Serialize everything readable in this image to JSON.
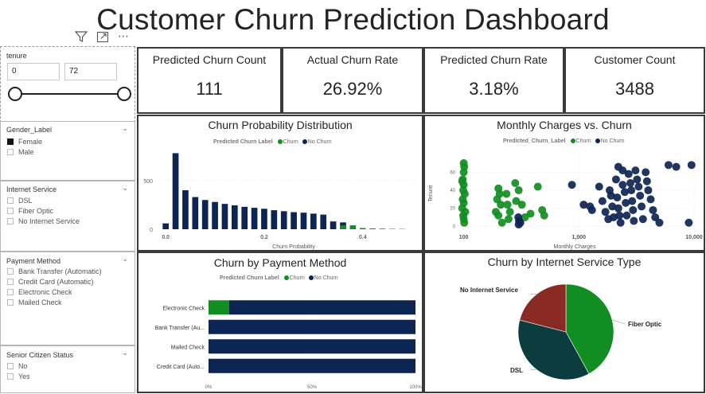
{
  "title": "Customer Churn Prediction Dashboard",
  "colors": {
    "churn": "#118d21",
    "no_churn": "#0d2553",
    "dsl": "#0b3c3e",
    "no_internet": "#8a2a25"
  },
  "toolbar": {
    "filter_icon": "filter-icon",
    "focus_icon": "focus-mode-icon",
    "more_icon": "more-options-icon",
    "more_label": "⋯"
  },
  "tenure": {
    "title": "tenure",
    "min": "0",
    "max": "72",
    "range": [
      0,
      72
    ]
  },
  "kpis": [
    {
      "label": "Predicted Churn Count",
      "value": "111"
    },
    {
      "label": "Actual Churn Rate",
      "value": "26.92%"
    },
    {
      "label": "Predicted Churn Rate",
      "value": "3.18%"
    },
    {
      "label": "Customer Count",
      "value": "3488"
    }
  ],
  "slicers": {
    "gender": {
      "title": "Gender_Label",
      "options": [
        {
          "label": "Female",
          "checked": true
        },
        {
          "label": "Male",
          "checked": false
        }
      ]
    },
    "internet": {
      "title": "Internet Service",
      "options": [
        {
          "label": "DSL",
          "checked": false
        },
        {
          "label": "Fiber Optic",
          "checked": false
        },
        {
          "label": "No Internet Service",
          "checked": false
        }
      ]
    },
    "payment": {
      "title": "Payment Method",
      "options": [
        {
          "label": "Bank Transfer (Automatic)",
          "checked": false
        },
        {
          "label": "Credit Card (Automatic)",
          "checked": false
        },
        {
          "label": "Electronic Check",
          "checked": false
        },
        {
          "label": "Mailed Check",
          "checked": false
        }
      ]
    },
    "senior": {
      "title": "Senior Citizen Status",
      "options": [
        {
          "label": "No",
          "checked": false
        },
        {
          "label": "Yes",
          "checked": false
        }
      ]
    }
  },
  "chart_data": [
    {
      "type": "bar",
      "title": "Churn Probability Distribution",
      "legend_title": "Predicted Churn Label",
      "xlabel": "Churn Probability",
      "ylabel": "",
      "xlim": [
        -0.01,
        0.52
      ],
      "ylim": [
        0,
        800
      ],
      "xticks": [
        "0.0",
        "0.2",
        "0.4"
      ],
      "yticks": [
        "0",
        "500"
      ],
      "legend": [
        "Churn",
        "No Churn"
      ],
      "bin_width": 0.02,
      "series": [
        {
          "name": "No Churn",
          "x": [
            0.0,
            0.02,
            0.04,
            0.06,
            0.08,
            0.1,
            0.12,
            0.14,
            0.16,
            0.18,
            0.2,
            0.22,
            0.24,
            0.26,
            0.28,
            0.3,
            0.32,
            0.34,
            0.36
          ],
          "values": [
            60,
            780,
            400,
            330,
            300,
            280,
            260,
            245,
            230,
            220,
            210,
            195,
            185,
            175,
            170,
            160,
            150,
            80,
            70
          ]
        },
        {
          "name": "Churn",
          "x": [
            0.36,
            0.38,
            0.4,
            0.42,
            0.44,
            0.46,
            0.48
          ],
          "values": [
            40,
            40,
            12,
            8,
            6,
            4,
            3
          ]
        }
      ]
    },
    {
      "type": "scatter",
      "title": "Monthly Charges vs. Churn",
      "legend_title": "Predicted_Churn_Label",
      "xlabel": "Monthly Charges",
      "ylabel": "Tenure",
      "xscale": "log",
      "xlim": [
        90,
        10000
      ],
      "ylim": [
        -5,
        78
      ],
      "xticks": [
        "100",
        "1,000",
        "10,000"
      ],
      "yticks": [
        "0",
        "20",
        "40",
        "60"
      ],
      "legend": [
        "Churn",
        "No Churn"
      ],
      "series": [
        {
          "name": "Churn",
          "points": [
            [
              100,
              70
            ],
            [
              101,
              66
            ],
            [
              100,
              60
            ],
            [
              98,
              52
            ],
            [
              97,
              50
            ],
            [
              100,
              46
            ],
            [
              99,
              40
            ],
            [
              102,
              36
            ],
            [
              98,
              30
            ],
            [
              100,
              26
            ],
            [
              97,
              20
            ],
            [
              103,
              16
            ],
            [
              99,
              12
            ],
            [
              100,
              8
            ],
            [
              101,
              4
            ],
            [
              200,
              42
            ],
            [
              205,
              36
            ],
            [
              195,
              30
            ],
            [
              210,
              24
            ],
            [
              190,
              16
            ],
            [
              200,
              12
            ],
            [
              215,
              4
            ],
            [
              235,
              36
            ],
            [
              240,
              24
            ],
            [
              252,
              16
            ],
            [
              245,
              8
            ],
            [
              280,
              48
            ],
            [
              300,
              40
            ],
            [
              320,
              24
            ],
            [
              340,
              10
            ],
            [
              380,
              14
            ],
            [
              440,
              44
            ],
            [
              480,
              18
            ],
            [
              500,
              12
            ],
            [
              285,
              28
            ]
          ]
        },
        {
          "name": "No Churn",
          "points": [
            [
              300,
              2
            ],
            [
              302,
              6
            ],
            [
              298,
              10
            ],
            [
              310,
              4
            ],
            [
              870,
              46
            ],
            [
              1100,
              24
            ],
            [
              1300,
              18
            ],
            [
              1500,
              44
            ],
            [
              1600,
              28
            ],
            [
              1700,
              16
            ],
            [
              1800,
              8
            ],
            [
              1850,
              40
            ],
            [
              1900,
              34
            ],
            [
              1950,
              22
            ],
            [
              2000,
              10
            ],
            [
              2100,
              52
            ],
            [
              2150,
              32
            ],
            [
              2200,
              20
            ],
            [
              2250,
              12
            ],
            [
              2300,
              4
            ],
            [
              2400,
              46
            ],
            [
              2500,
              38
            ],
            [
              2550,
              26
            ],
            [
              2600,
              12
            ],
            [
              2700,
              58
            ],
            [
              2800,
              48
            ],
            [
              2850,
              40
            ],
            [
              2900,
              28
            ],
            [
              2950,
              18
            ],
            [
              3000,
              6
            ],
            [
              3100,
              62
            ],
            [
              3200,
              52
            ],
            [
              3300,
              44
            ],
            [
              3400,
              34
            ],
            [
              3500,
              22
            ],
            [
              3600,
              8
            ],
            [
              3800,
              60
            ],
            [
              3900,
              50
            ],
            [
              4000,
              40
            ],
            [
              4200,
              30
            ],
            [
              4400,
              18
            ],
            [
              4600,
              10
            ],
            [
              5000,
              4
            ],
            [
              6000,
              68
            ],
            [
              7000,
              66
            ],
            [
              9500,
              68
            ],
            [
              9000,
              4
            ],
            [
              2200,
              66
            ],
            [
              2400,
              62
            ],
            [
              1250,
              22
            ]
          ]
        }
      ]
    },
    {
      "type": "bar",
      "orientation": "horizontal",
      "stacked_100": true,
      "title": "Churn by Payment Method",
      "legend_title": "Predicted Churn Label",
      "categories": [
        "Electronic Check",
        "Bank Transfer (Au...",
        "Mailed Check",
        "Credit Card (Auto..."
      ],
      "xticks": [
        "0%",
        "50%",
        "100%"
      ],
      "legend": [
        "Churn",
        "No Churn"
      ],
      "series": [
        {
          "name": "Churn",
          "values": [
            10,
            0,
            0,
            0
          ]
        },
        {
          "name": "No Churn",
          "values": [
            90,
            100,
            100,
            100
          ]
        }
      ]
    },
    {
      "type": "pie",
      "title": "Churn by Internet Service Type",
      "labels": [
        "Fiber Optic",
        "DSL",
        "No Internet Service"
      ],
      "values": [
        42,
        37,
        21
      ]
    }
  ]
}
